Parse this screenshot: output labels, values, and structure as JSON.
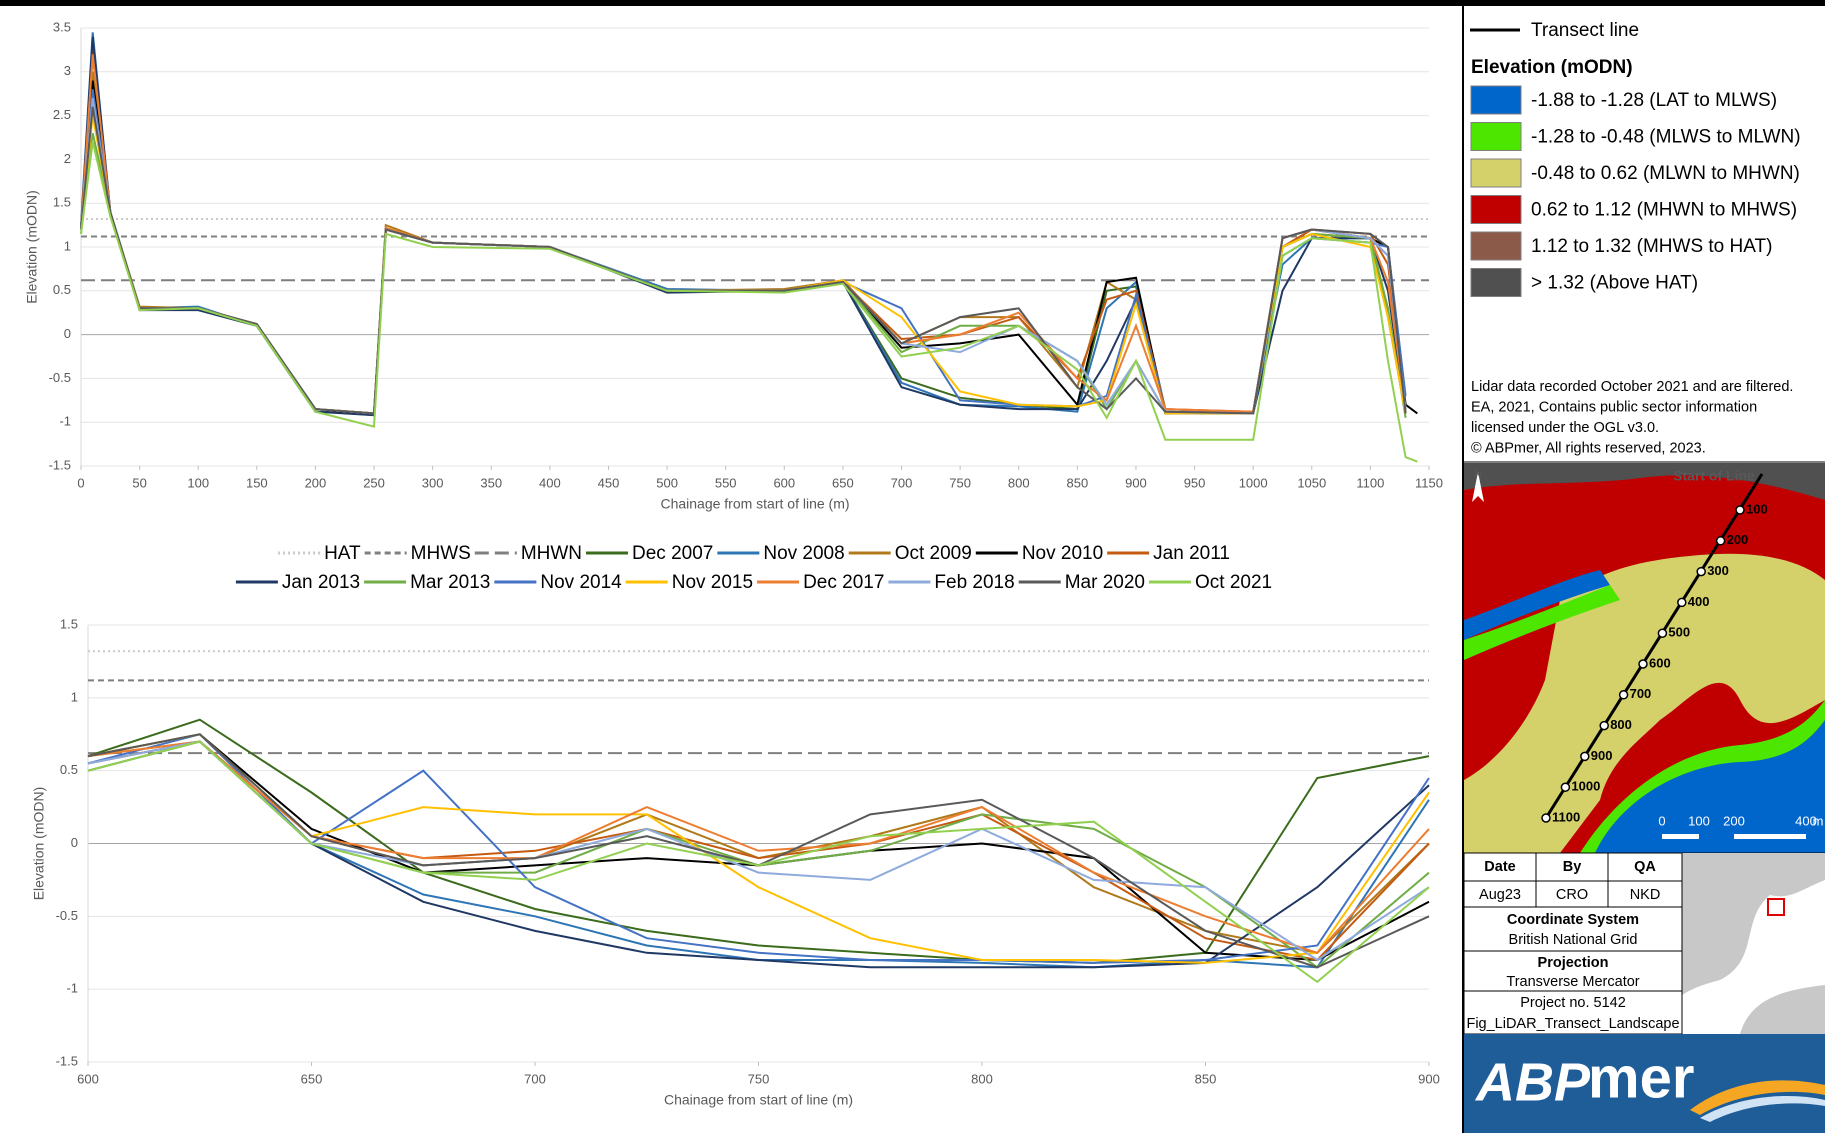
{
  "chart_data": [
    {
      "type": "line",
      "x_label": "Chainage from start of line (m)",
      "y_label": "Elevation (mODN)",
      "xlim": [
        0,
        1150
      ],
      "ylim": [
        -1.5,
        3.5
      ],
      "xticks": [
        0,
        50,
        100,
        150,
        200,
        250,
        300,
        350,
        400,
        450,
        500,
        550,
        600,
        650,
        700,
        750,
        800,
        850,
        900,
        950,
        1000,
        1050,
        1100,
        1150
      ],
      "yticks": [
        -1.5,
        -1,
        -0.5,
        0,
        0.5,
        1,
        1.5,
        2,
        2.5,
        3,
        3.5
      ],
      "grid": true,
      "ref_lines": [
        {
          "name": "HAT",
          "value": 1.32,
          "color": "#c9c9c9",
          "style": "dotted"
        },
        {
          "name": "MHWS",
          "value": 1.12,
          "color": "#7f7f7f",
          "style": "dashed"
        },
        {
          "name": "MHWN",
          "value": 0.62,
          "color": "#7f7f7f",
          "style": "longdash"
        }
      ],
      "x": [
        0,
        10,
        25,
        50,
        100,
        150,
        200,
        250,
        260,
        300,
        400,
        500,
        600,
        650,
        700,
        750,
        800,
        850,
        875,
        900,
        925,
        1000,
        1025,
        1050,
        1100,
        1115,
        1130,
        1140
      ],
      "series": [
        {
          "name": "Dec 2007",
          "color": "#3b6b1c",
          "values": [
            1.2,
            3.2,
            1.4,
            0.3,
            0.3,
            0.12,
            -0.85,
            -0.9,
            1.2,
            1.05,
            1.0,
            0.5,
            0.5,
            0.6,
            -0.5,
            -0.72,
            -0.8,
            -0.85,
            0.5,
            0.55,
            -0.9,
            -0.88,
            1.0,
            1.15,
            1.1,
            0.2,
            -0.9,
            null
          ]
        },
        {
          "name": "Nov 2008",
          "color": "#2e75b6",
          "values": [
            1.25,
            3.45,
            1.4,
            0.3,
            0.32,
            0.1,
            -0.88,
            -0.9,
            1.2,
            1.05,
            1.0,
            0.52,
            0.5,
            0.6,
            -0.55,
            -0.8,
            -0.82,
            -0.88,
            0.3,
            0.6,
            -0.85,
            -0.9,
            0.8,
            1.1,
            1.1,
            0.9,
            -0.85,
            null
          ]
        },
        {
          "name": "Oct 2009",
          "color": "#b07a1a",
          "values": [
            1.2,
            3.0,
            1.4,
            0.32,
            0.3,
            0.12,
            -0.85,
            -0.9,
            1.25,
            1.05,
            1.0,
            0.5,
            0.52,
            0.62,
            -0.1,
            0.2,
            0.2,
            -0.6,
            0.6,
            0.4,
            -0.9,
            -0.9,
            1.0,
            1.2,
            1.1,
            1.0,
            -0.85,
            null
          ]
        },
        {
          "name": "Nov 2010",
          "color": "#000000",
          "values": [
            1.2,
            2.9,
            1.4,
            0.3,
            0.3,
            0.12,
            -0.85,
            -0.92,
            1.2,
            1.05,
            1.0,
            0.5,
            0.5,
            0.6,
            -0.15,
            -0.1,
            0.0,
            -0.8,
            0.6,
            0.65,
            -0.9,
            -0.88,
            1.1,
            1.2,
            1.1,
            1.0,
            -0.8,
            -0.9
          ]
        },
        {
          "name": "Jan 2011",
          "color": "#c55a11",
          "values": [
            1.2,
            3.3,
            1.4,
            0.3,
            0.3,
            0.12,
            -0.85,
            -0.9,
            1.2,
            1.05,
            1.0,
            0.5,
            0.5,
            0.6,
            -0.05,
            0.0,
            0.2,
            -0.5,
            0.4,
            0.5,
            -0.85,
            -0.88,
            1.0,
            1.2,
            1.15,
            0.8,
            -0.85,
            null
          ]
        },
        {
          "name": "Jan 2013",
          "color": "#203864",
          "values": [
            1.2,
            3.4,
            1.4,
            0.28,
            0.28,
            0.1,
            -0.88,
            -0.92,
            1.2,
            1.05,
            1.0,
            0.48,
            0.5,
            0.6,
            -0.6,
            -0.8,
            -0.85,
            -0.85,
            -0.3,
            0.4,
            -0.9,
            -0.9,
            0.5,
            1.1,
            1.1,
            0.5,
            -0.9,
            null
          ]
        },
        {
          "name": "Mar 2013",
          "color": "#70ad47",
          "values": [
            1.15,
            2.3,
            1.4,
            0.3,
            0.3,
            0.12,
            -0.85,
            -0.9,
            1.2,
            1.05,
            1.0,
            0.5,
            0.5,
            0.6,
            -0.2,
            0.1,
            0.1,
            -0.3,
            -0.85,
            -0.3,
            -0.88,
            -0.9,
            1.0,
            1.15,
            1.1,
            0.3,
            -0.95,
            null
          ]
        },
        {
          "name": "Nov 2014",
          "color": "#4472c4",
          "values": [
            1.2,
            2.8,
            1.4,
            0.3,
            0.3,
            0.12,
            -0.85,
            -0.9,
            1.2,
            1.05,
            1.0,
            0.5,
            0.5,
            0.6,
            0.3,
            -0.75,
            -0.8,
            -0.82,
            -0.7,
            0.45,
            -0.88,
            -0.9,
            0.9,
            1.1,
            1.05,
            1.0,
            -0.7,
            null
          ]
        },
        {
          "name": "Nov 2015",
          "color": "#ffc000",
          "values": [
            1.2,
            2.5,
            1.4,
            0.3,
            0.3,
            0.12,
            -0.85,
            -0.9,
            1.2,
            1.05,
            1.0,
            0.5,
            0.5,
            0.62,
            0.2,
            -0.65,
            -0.8,
            -0.82,
            -0.75,
            0.35,
            -0.9,
            -0.9,
            1.0,
            1.15,
            1.0,
            0.2,
            -0.9,
            null
          ]
        },
        {
          "name": "Dec 2017",
          "color": "#ed7d31",
          "values": [
            1.2,
            3.2,
            1.4,
            0.3,
            0.3,
            0.12,
            -0.85,
            -0.9,
            1.22,
            1.05,
            1.0,
            0.5,
            0.5,
            0.6,
            -0.1,
            0.0,
            0.25,
            -0.5,
            -0.75,
            0.1,
            -0.85,
            -0.88,
            1.1,
            1.2,
            1.1,
            0.6,
            -0.85,
            null
          ]
        },
        {
          "name": "Feb 2018",
          "color": "#8faadc",
          "values": [
            1.2,
            2.7,
            1.4,
            0.3,
            0.3,
            0.12,
            -0.85,
            -0.9,
            1.2,
            1.05,
            1.0,
            0.5,
            0.5,
            0.6,
            -0.1,
            -0.2,
            0.1,
            -0.3,
            -0.8,
            -0.3,
            -0.88,
            -0.9,
            1.1,
            1.2,
            1.1,
            0.9,
            -0.85,
            null
          ]
        },
        {
          "name": "Mar 2020",
          "color": "#595959",
          "values": [
            1.2,
            2.6,
            1.4,
            0.3,
            0.3,
            0.12,
            -0.85,
            -0.9,
            1.2,
            1.05,
            1.0,
            0.5,
            0.5,
            0.6,
            -0.1,
            0.2,
            0.3,
            -0.6,
            -0.85,
            -0.5,
            -0.88,
            -0.9,
            1.1,
            1.2,
            1.15,
            1.0,
            -0.9,
            null
          ]
        },
        {
          "name": "Oct 2021",
          "color": "#92d050",
          "values": [
            1.15,
            2.2,
            1.35,
            0.28,
            0.3,
            0.1,
            -0.88,
            -1.05,
            1.15,
            1.0,
            0.98,
            0.5,
            0.48,
            0.58,
            -0.25,
            -0.15,
            0.1,
            -0.4,
            -0.95,
            -0.3,
            -1.2,
            -1.2,
            0.9,
            1.1,
            1.05,
            -0.3,
            -1.4,
            -1.45
          ]
        }
      ]
    },
    {
      "type": "line",
      "x_label": "Chainage from start of line (m)",
      "y_label": "Elevation (mODN)",
      "xlim": [
        600,
        900
      ],
      "ylim": [
        -1.5,
        1.5
      ],
      "xticks": [
        600,
        650,
        700,
        750,
        800,
        850,
        900
      ],
      "yticks": [
        -1.5,
        -1,
        -0.5,
        0,
        0.5,
        1,
        1.5
      ],
      "grid": true,
      "ref_lines": [
        {
          "value": 1.32,
          "color": "#c9c9c9",
          "style": "dotted"
        },
        {
          "value": 1.12,
          "color": "#7f7f7f",
          "style": "dashed"
        },
        {
          "value": 0.62,
          "color": "#7f7f7f",
          "style": "longdash"
        }
      ],
      "x": [
        600,
        625,
        650,
        675,
        700,
        725,
        750,
        775,
        800,
        825,
        850,
        875,
        900
      ],
      "series": [
        {
          "color": "#3b6b1c",
          "values": [
            0.6,
            0.85,
            0.35,
            -0.2,
            -0.45,
            -0.6,
            -0.7,
            -0.75,
            -0.8,
            -0.82,
            -0.75,
            0.45,
            0.6
          ]
        },
        {
          "color": "#2e75b6",
          "values": [
            0.55,
            0.7,
            0.0,
            -0.35,
            -0.5,
            -0.7,
            -0.8,
            -0.8,
            -0.82,
            -0.85,
            -0.8,
            -0.85,
            0.3
          ]
        },
        {
          "color": "#b07a1a",
          "values": [
            0.6,
            0.7,
            0.05,
            -0.15,
            -0.1,
            0.2,
            -0.1,
            0.05,
            0.25,
            -0.3,
            -0.6,
            -0.75,
            0.0
          ]
        },
        {
          "color": "#000000",
          "values": [
            0.6,
            0.75,
            0.1,
            -0.2,
            -0.15,
            -0.1,
            -0.15,
            -0.05,
            0.0,
            -0.1,
            -0.75,
            -0.8,
            -0.4
          ]
        },
        {
          "color": "#c55a11",
          "values": [
            0.55,
            0.7,
            0.05,
            -0.1,
            -0.05,
            0.1,
            -0.1,
            0.0,
            0.2,
            -0.2,
            -0.65,
            -0.8,
            0.0
          ]
        },
        {
          "color": "#203864",
          "values": [
            0.5,
            0.7,
            0.0,
            -0.4,
            -0.6,
            -0.75,
            -0.8,
            -0.85,
            -0.85,
            -0.85,
            -0.82,
            -0.3,
            0.4
          ]
        },
        {
          "color": "#70ad47",
          "values": [
            0.5,
            0.7,
            0.0,
            -0.2,
            -0.2,
            0.1,
            -0.15,
            -0.05,
            0.2,
            0.1,
            -0.3,
            -0.85,
            -0.2
          ]
        },
        {
          "color": "#4472c4",
          "values": [
            0.55,
            0.75,
            0.0,
            0.5,
            -0.3,
            -0.65,
            -0.75,
            -0.8,
            -0.8,
            -0.82,
            -0.8,
            -0.7,
            0.45
          ]
        },
        {
          "color": "#ffc000",
          "values": [
            0.6,
            0.75,
            0.05,
            0.25,
            0.2,
            0.2,
            -0.3,
            -0.65,
            -0.8,
            -0.8,
            -0.82,
            -0.75,
            0.35
          ]
        },
        {
          "color": "#ed7d31",
          "values": [
            0.6,
            0.7,
            0.05,
            -0.1,
            -0.1,
            0.25,
            -0.05,
            0.0,
            0.25,
            -0.2,
            -0.5,
            -0.75,
            0.1
          ]
        },
        {
          "color": "#8faadc",
          "values": [
            0.55,
            0.7,
            0.0,
            -0.15,
            -0.1,
            0.1,
            -0.2,
            -0.25,
            0.1,
            -0.25,
            -0.3,
            -0.8,
            -0.3
          ]
        },
        {
          "color": "#595959",
          "values": [
            0.6,
            0.75,
            0.05,
            -0.15,
            -0.1,
            0.05,
            -0.15,
            0.2,
            0.3,
            -0.1,
            -0.6,
            -0.85,
            -0.5
          ]
        },
        {
          "color": "#92d050",
          "values": [
            0.5,
            0.7,
            0.0,
            -0.2,
            -0.25,
            0.0,
            -0.15,
            0.05,
            0.1,
            0.15,
            -0.4,
            -0.95,
            -0.3
          ]
        }
      ]
    }
  ],
  "legend_panel": {
    "transect": "Transect line",
    "title": "Elevation (mODN)",
    "classes": [
      {
        "label": "-1.88 to -1.28 (LAT to MLWS)",
        "color": "#0066cc"
      },
      {
        "label": "-1.28 to -0.48 (MLWS to MLWN)",
        "color": "#4ce600"
      },
      {
        "label": "-0.48 to 0.62 (MLWN to MHWN)",
        "color": "#d4d06a"
      },
      {
        "label": "0.62 to 1.12 (MHWN to MHWS)",
        "color": "#c00000"
      },
      {
        "label": "1.12 to 1.32 (MHWS to HAT)",
        "color": "#8c5a48"
      },
      {
        "label": "> 1.32 (Above HAT)",
        "color": "#505050"
      }
    ],
    "note": [
      "Lidar data recorded October 2021 and are filtered.",
      "EA, 2021, Contains public sector information",
      "licensed under the OGL v3.0.",
      "© ABPmer, All rights reserved, 2023."
    ]
  },
  "map": {
    "start": "Start of Line",
    "north": "N",
    "markers": [
      "100",
      "200",
      "300",
      "400",
      "500",
      "600",
      "700",
      "800",
      "900",
      "1000",
      "1100"
    ],
    "scale": [
      "0",
      "100",
      "200",
      "400",
      "m"
    ]
  },
  "info_table": {
    "header": [
      "Date",
      "By",
      "QA"
    ],
    "row": [
      "Aug23",
      "CRO",
      "NKD"
    ],
    "coord_title": "Coordinate System",
    "coord": "British National Grid",
    "proj_title": "Projection",
    "proj": "Transverse Mercator",
    "project": "Project no. 5142",
    "figure": "Fig_LiDAR_Transect_Landscape"
  },
  "logo": [
    "ABP",
    "mer"
  ]
}
